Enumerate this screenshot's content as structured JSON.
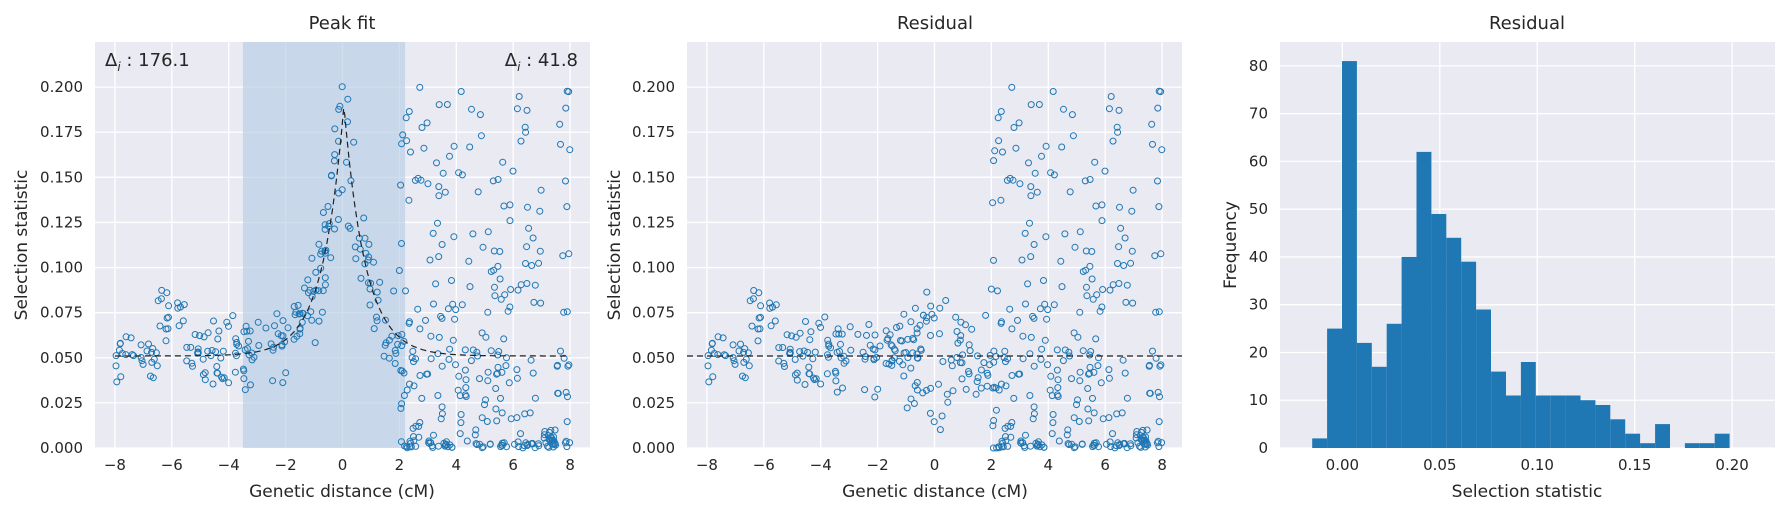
{
  "chart_data": [
    {
      "type": "scatter",
      "title": "Peak fit",
      "xlabel": "Genetic distance (cM)",
      "ylabel": "Selection statistic",
      "xlim": [
        -8.7,
        8.7
      ],
      "ylim": [
        0,
        0.225
      ],
      "xticks": [
        -8,
        -6,
        -4,
        -2,
        0,
        2,
        4,
        6,
        8
      ],
      "yticks": [
        0.0,
        0.025,
        0.05,
        0.075,
        0.1,
        0.125,
        0.15,
        0.175,
        0.2
      ],
      "grid": true,
      "shaded_region": [
        -3.5,
        2.2
      ],
      "fit_baseline": 0.051,
      "fit_peak_x": 0.05,
      "fit_peak_y": 0.19,
      "annotations": [
        {
          "label": "Δ",
          "subscript": "i",
          "text": " : 176.1",
          "position": "top-left"
        },
        {
          "label": "Δ",
          "subscript": "i",
          "text": " : 41.8",
          "position": "top-right"
        }
      ],
      "point_color": "#1f77b4"
    },
    {
      "type": "scatter",
      "title": "Residual",
      "xlabel": "Genetic distance (cM)",
      "ylabel": "Selection statistic",
      "xlim": [
        -8.7,
        8.7
      ],
      "ylim": [
        0,
        0.225
      ],
      "xticks": [
        -8,
        -6,
        -4,
        -2,
        0,
        2,
        4,
        6,
        8
      ],
      "yticks": [
        0.0,
        0.025,
        0.05,
        0.075,
        0.1,
        0.125,
        0.15,
        0.175,
        0.2
      ],
      "grid": true,
      "hline": 0.051,
      "point_color": "#1f77b4"
    },
    {
      "type": "bar",
      "title": "Residual",
      "xlabel": "Selection statistic",
      "ylabel": "Frequency",
      "xlim": [
        -0.032,
        0.222
      ],
      "ylim": [
        0,
        85
      ],
      "xticks": [
        0.0,
        0.05,
        0.1,
        0.15,
        0.2
      ],
      "yticks": [
        0,
        10,
        20,
        30,
        40,
        50,
        60,
        70,
        80
      ],
      "grid": true,
      "bin_start": -0.0155,
      "bin_width": 0.00765,
      "values": [
        2,
        25,
        81,
        22,
        17,
        26,
        40,
        62,
        49,
        44,
        39,
        29,
        16,
        11,
        18,
        11,
        11,
        11,
        10,
        9,
        6,
        3,
        1,
        5,
        0,
        1,
        1,
        3
      ],
      "bar_color": "#1f77b4"
    }
  ],
  "x_tick_labels": [
    "−8",
    "−6",
    "−4",
    "−2",
    "0",
    "2",
    "4",
    "6",
    "8"
  ],
  "y_tick_labels": [
    "0.000",
    "0.025",
    "0.050",
    "0.075",
    "0.100",
    "0.125",
    "0.150",
    "0.175",
    "0.200"
  ],
  "h_x_tick_labels": [
    "0.00",
    "0.05",
    "0.10",
    "0.15",
    "0.20"
  ],
  "h_y_tick_labels": [
    "0",
    "10",
    "20",
    "30",
    "40",
    "50",
    "60",
    "70",
    "80"
  ]
}
